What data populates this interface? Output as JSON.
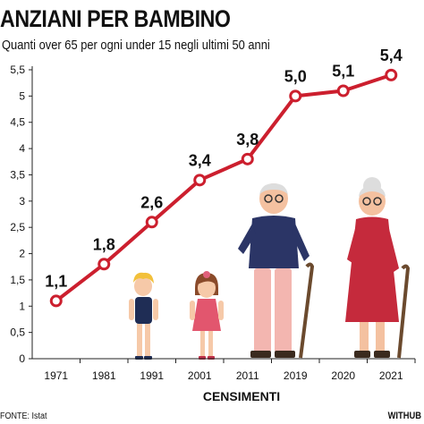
{
  "title": "ANZIANI PER BAMBINO",
  "subtitle": "Quanti over 65 per ogni under 15 negli ultimi 50 anni",
  "source": "FONTE: Istat",
  "brand": "WITHUB",
  "colors": {
    "line": "#cc1f2e",
    "point_fill": "#ffffff",
    "text": "#111111",
    "grid": "#aaaaaa"
  },
  "chart_data": {
    "type": "line",
    "title": "ANZIANI PER BAMBINO",
    "subtitle": "Quanti over 65 per ogni under 15 negli ultimi 50 anni",
    "xlabel": "CENSIMENTI",
    "ylabel": "",
    "categories": [
      "1971",
      "1981",
      "1991",
      "2001",
      "2011",
      "2019",
      "2020",
      "2021"
    ],
    "series": [
      {
        "values": [
          1.1,
          1.8,
          2.6,
          3.4,
          3.8,
          5.0,
          5.1,
          5.4
        ]
      }
    ],
    "data_labels": [
      "1,1",
      "1,8",
      "2,6",
      "3,4",
      "3,8",
      "5,0",
      "5,1",
      "5,4"
    ],
    "ylim": [
      0,
      5.5
    ],
    "yticks": [
      0,
      0.5,
      1,
      1.5,
      2,
      2.5,
      3,
      3.5,
      4,
      4.5,
      5,
      5.5
    ],
    "ytick_labels": [
      "0",
      "0,5",
      "1",
      "1,5",
      "2",
      "2,5",
      "3",
      "3,5",
      "4",
      "4,5",
      "5",
      "5,5"
    ],
    "grid": false,
    "legend": "none",
    "illustrations": [
      "boy-figure",
      "girl-figure",
      "grandfather-figure",
      "grandmother-figure"
    ]
  }
}
